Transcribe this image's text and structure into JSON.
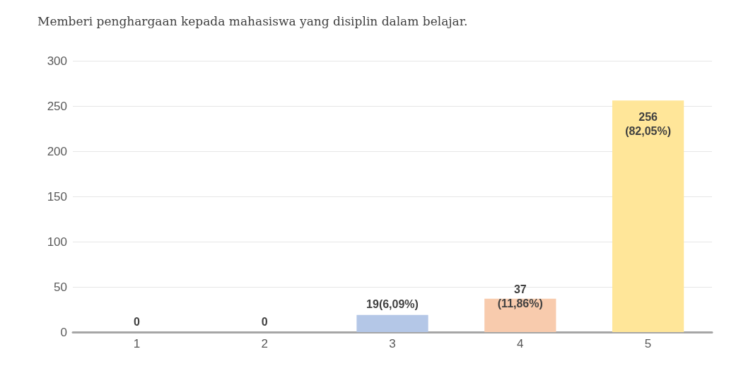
{
  "chart_data": {
    "type": "bar",
    "title": "Memberi penghargaan kepada mahasiswa yang disiplin dalam belajar.",
    "categories": [
      "1",
      "2",
      "3",
      "4",
      "5"
    ],
    "values": [
      0,
      0,
      19,
      37,
      256
    ],
    "colors": [
      "#a5a5a5",
      "#a5a5a5",
      "#b4c7e7",
      "#f8cbad",
      "#ffe699"
    ],
    "value_labels": [
      "0",
      "0",
      "19(6,09%)",
      "37\n(11,86%)",
      "256\n(82,05%)"
    ],
    "ylim": [
      0,
      300
    ],
    "yticks": [
      0,
      50,
      100,
      150,
      200,
      250,
      300
    ],
    "grid": "y"
  }
}
